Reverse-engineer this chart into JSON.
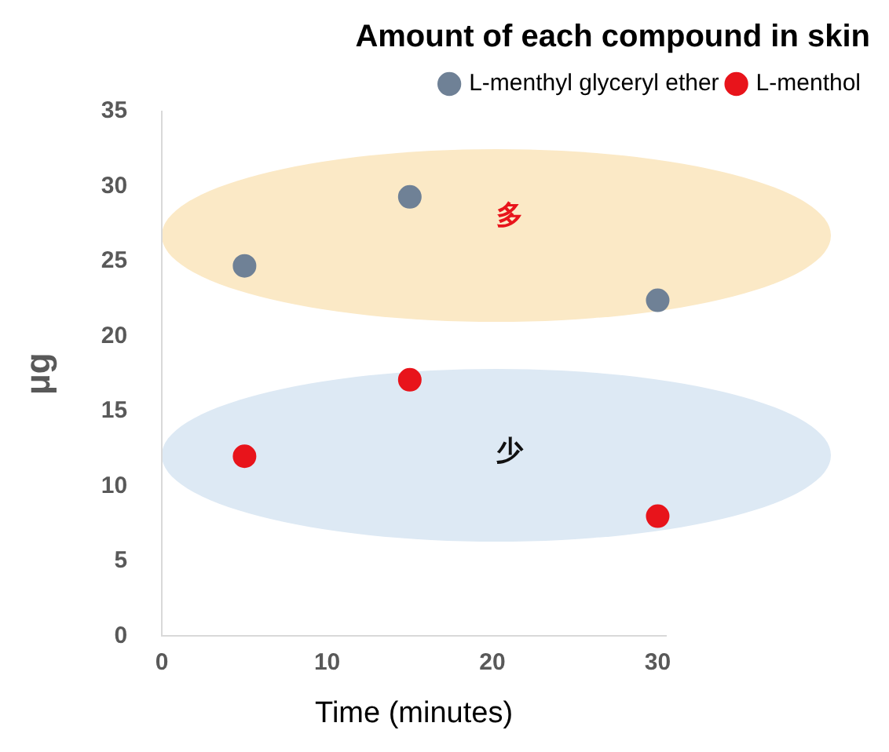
{
  "chart_data": {
    "type": "scatter",
    "title": "Amount of each compound in skin",
    "xlabel": "Time (minutes)",
    "ylabel": "μg",
    "x": [
      5,
      15,
      30
    ],
    "series": [
      {
        "name": "L-menthyl glyceryl ether",
        "color": "#6f8196",
        "values": [
          24.7,
          29.3,
          22.4
        ]
      },
      {
        "name": "L-menthol",
        "color": "#e8141b",
        "values": [
          12,
          17.1,
          8
        ]
      }
    ],
    "xlim": [
      0,
      30.5
    ],
    "xticks": [
      0,
      10,
      20,
      30
    ],
    "ylim": [
      0,
      35
    ],
    "yticks": [
      0,
      5,
      10,
      15,
      20,
      25,
      30,
      35
    ],
    "grid": false,
    "legend": "top right",
    "marker": "circle",
    "annotations": [
      "多",
      "少"
    ]
  }
}
